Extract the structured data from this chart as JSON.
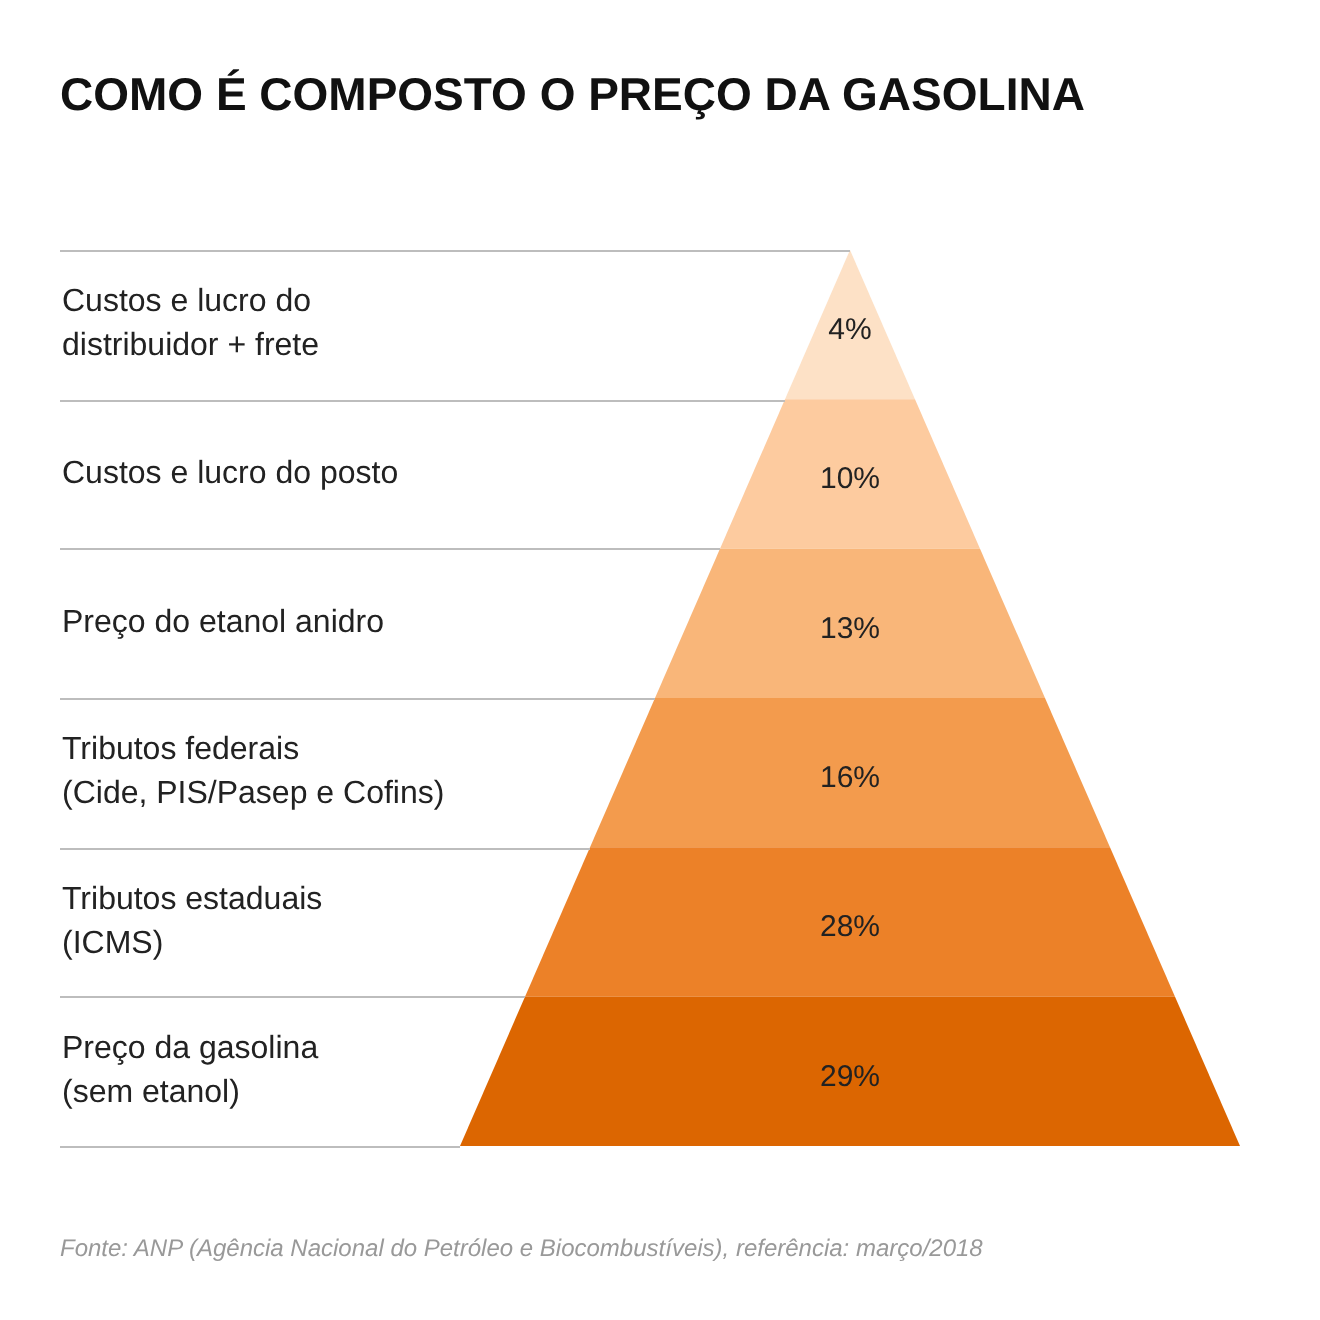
{
  "chart_data": {
    "type": "other",
    "title": "COMO É COMPOSTO O PREÇO DA GASOLINA",
    "categories": [
      "Custos e lucro do\ndistribuidor + frete",
      "Custos e lucro do posto",
      "Preço do etanol anidro",
      "Tributos federais\n(Cide, PIS/Pasep e Cofins)",
      "Tributos estaduais\n(ICMS)",
      "Preço da gasolina\n(sem etanol)"
    ],
    "values": [
      4,
      10,
      13,
      16,
      28,
      29
    ],
    "value_labels": [
      "4%",
      "10%",
      "13%",
      "16%",
      "28%",
      "29%"
    ],
    "colors": [
      "#fde1c6",
      "#fdcb9f",
      "#f9b679",
      "#f39b4d",
      "#ec8128",
      "#dc6601"
    ],
    "annotations": [
      "Fonte: ANP (Agência Nacional do Petróleo e Biocombustíveis), referência: março/2018"
    ]
  }
}
